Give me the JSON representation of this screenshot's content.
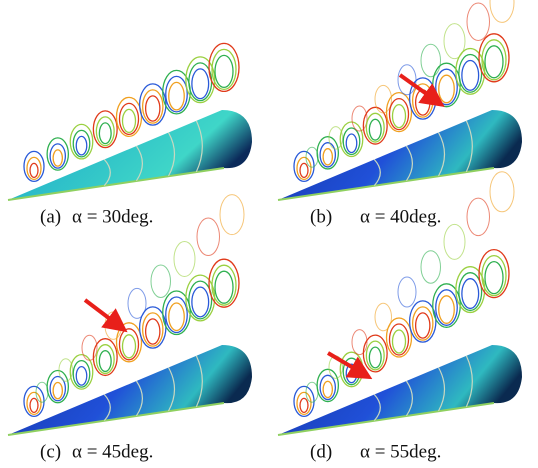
{
  "panels": [
    {
      "label": "(a)",
      "caption": "α = 30deg."
    },
    {
      "label": "(b)",
      "caption": "α = 40deg."
    },
    {
      "label": "(c)",
      "caption": "α = 45deg."
    },
    {
      "label": "(d)",
      "caption": "α = 55deg."
    }
  ]
}
